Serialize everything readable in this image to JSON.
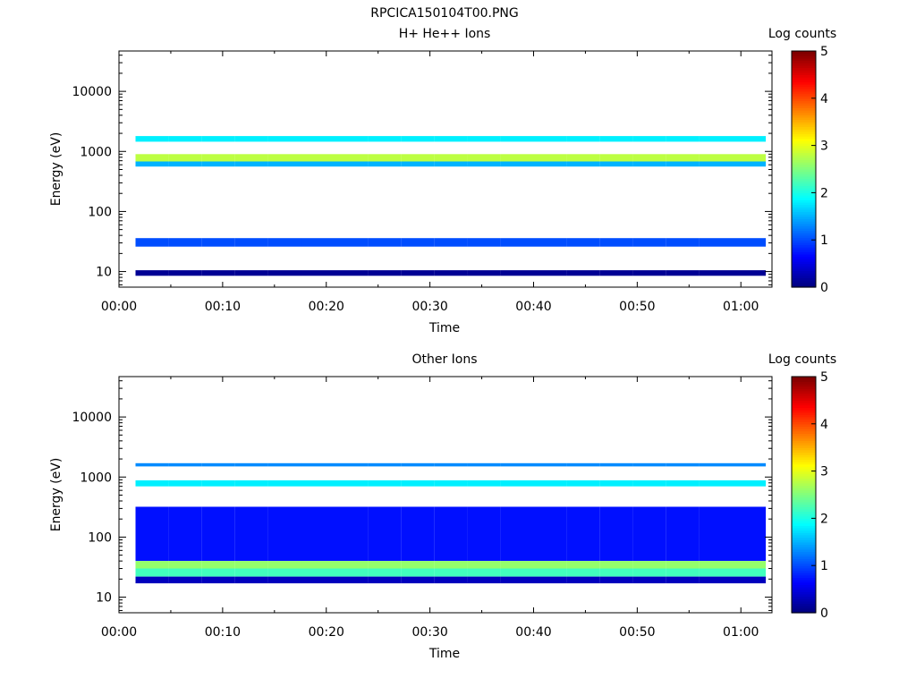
{
  "figure": {
    "title": "RPCICA150104T00.PNG"
  },
  "chart_data": [
    {
      "type": "heatmap",
      "title": "H+ He++ Ions",
      "xlabel": "Time",
      "ylabel": "Energy (eV)",
      "yscale": "log",
      "ylim": [
        5.5,
        47000
      ],
      "xlim_min": [
        0,
        63
      ],
      "xticks": [
        "00:00",
        "00:10",
        "00:20",
        "00:30",
        "00:40",
        "00:50",
        "01:00"
      ],
      "yticks": [
        "10",
        "100",
        "1000",
        "10000"
      ],
      "colorbar": {
        "label": "Log counts",
        "range": [
          0,
          5
        ],
        "ticks": [
          "0",
          "1",
          "2",
          "3",
          "4",
          "5"
        ]
      },
      "columns_start_min": [
        1.6,
        4.8,
        8.0,
        11.2,
        14.4,
        17.6,
        20.8,
        24.0,
        27.2,
        30.4,
        33.6,
        36.8,
        40.0,
        43.2,
        46.4,
        49.6,
        52.8,
        56.0,
        59.2
      ],
      "column_width_min": 3.2,
      "bands": [
        {
          "emin": 1450,
          "emax": 1800,
          "value": 1.8
        },
        {
          "emin": 680,
          "emax": 900,
          "value": 2.8
        },
        {
          "emin": 560,
          "emax": 680,
          "value": 1.5
        },
        {
          "emin": 26,
          "emax": 36,
          "value": 1.0
        },
        {
          "emin": 8.5,
          "emax": 10.5,
          "value": 0.1
        }
      ]
    },
    {
      "type": "heatmap",
      "title": "Other Ions",
      "xlabel": "Time",
      "ylabel": "Energy (eV)",
      "yscale": "log",
      "ylim": [
        5.5,
        47000
      ],
      "xlim_min": [
        0,
        63
      ],
      "xticks": [
        "00:00",
        "00:10",
        "00:20",
        "00:30",
        "00:40",
        "00:50",
        "01:00"
      ],
      "yticks": [
        "10",
        "100",
        "1000",
        "10000"
      ],
      "colorbar": {
        "label": "Log counts",
        "range": [
          0,
          5
        ],
        "ticks": [
          "0",
          "1",
          "2",
          "3",
          "4",
          "5"
        ]
      },
      "columns_start_min": [
        1.6,
        4.8,
        8.0,
        11.2,
        14.4,
        17.6,
        20.8,
        24.0,
        27.2,
        30.4,
        33.6,
        36.8,
        40.0,
        43.2,
        46.4,
        49.6,
        52.8,
        56.0,
        59.2
      ],
      "column_width_min": 3.2,
      "bands": [
        {
          "emin": 1500,
          "emax": 1700,
          "value": 1.3
        },
        {
          "emin": 700,
          "emax": 880,
          "value": 1.8
        },
        {
          "emin": 40,
          "emax": 320,
          "value": 0.7
        },
        {
          "emin": 30,
          "emax": 40,
          "value": 2.6
        },
        {
          "emin": 22,
          "emax": 30,
          "value": 2.2
        },
        {
          "emin": 17,
          "emax": 22,
          "value": 0.3
        }
      ]
    }
  ]
}
